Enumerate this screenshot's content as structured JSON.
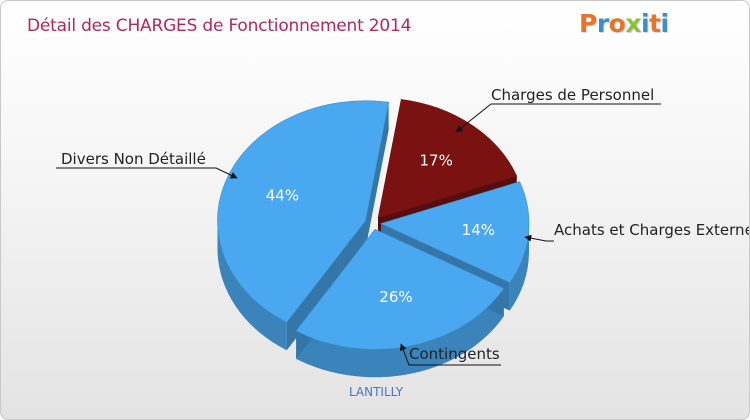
{
  "header": {
    "title": "Détail des CHARGES de Fonctionnement 2014",
    "title_color": "#b0285c",
    "logo_text": "Proxiti",
    "logo_colors": [
      "#e8742a",
      "#3a8fd0",
      "#e8742a",
      "#8bbf3f",
      "#3a8fd0",
      "#e8742a",
      "#3a8fd0"
    ]
  },
  "footer": {
    "commune": "LANTILLY",
    "commune_color": "#4477cc"
  },
  "chart_data": {
    "type": "pie",
    "title": "Détail des CHARGES de Fonctionnement 2014",
    "style": "3d-exploded",
    "slices": [
      {
        "label": "Charges de Personnel",
        "value": 17,
        "value_label": "17%",
        "color": "#7a1212"
      },
      {
        "label": "Achats et Charges Externes",
        "value": 14,
        "value_label": "14%",
        "color": "#4aa8f0"
      },
      {
        "label": "Contingents",
        "value": 26,
        "value_label": "26%",
        "color": "#4aa8f0"
      },
      {
        "label": "Divers Non Détaillé",
        "value": 44,
        "value_label": "44%",
        "color": "#4aa8f0"
      }
    ]
  }
}
